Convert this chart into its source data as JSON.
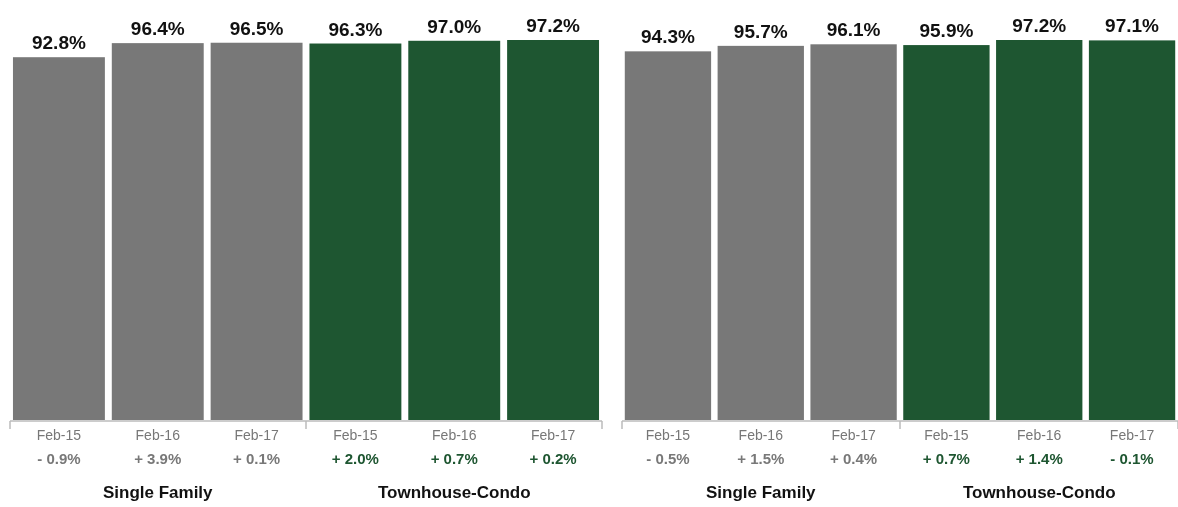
{
  "chart_data": [
    {
      "type": "bar",
      "categories": [
        "Feb-15",
        "Feb-16",
        "Feb-17",
        "Feb-15",
        "Feb-16",
        "Feb-17"
      ],
      "values": [
        92.8,
        96.4,
        96.5,
        96.3,
        97.0,
        97.2
      ],
      "colors": [
        "#787878",
        "#787878",
        "#787878",
        "#1e5631",
        "#1e5631",
        "#1e5631"
      ],
      "data_labels": true,
      "value_labels": [
        "92.8%",
        "96.4%",
        "96.5%",
        "96.3%",
        "97.0%",
        "97.2%"
      ],
      "annotations": [
        "- 0.9%",
        "+ 3.9%",
        "+ 0.1%",
        "+ 2.0%",
        "+ 0.7%",
        "+ 0.2%",
        "Single Family",
        "Townhouse-Condo"
      ]
    },
    {
      "type": "bar",
      "categories": [
        "Feb-15",
        "Feb-16",
        "Feb-17",
        "Feb-15",
        "Feb-16",
        "Feb-17"
      ],
      "values": [
        94.3,
        95.7,
        96.1,
        95.9,
        97.2,
        97.1
      ],
      "colors": [
        "#787878",
        "#787878",
        "#787878",
        "#1e5631",
        "#1e5631",
        "#1e5631"
      ],
      "data_labels": true,
      "value_labels": [
        "94.3%",
        "95.7%",
        "96.1%",
        "95.9%",
        "97.2%",
        "97.1%"
      ],
      "annotations": [
        "- 0.5%",
        "+ 1.5%",
        "+ 0.4%",
        "+ 0.7%",
        "+ 1.4%",
        "- 0.1%",
        "Single Family",
        "Townhouse-Condo"
      ]
    }
  ]
}
